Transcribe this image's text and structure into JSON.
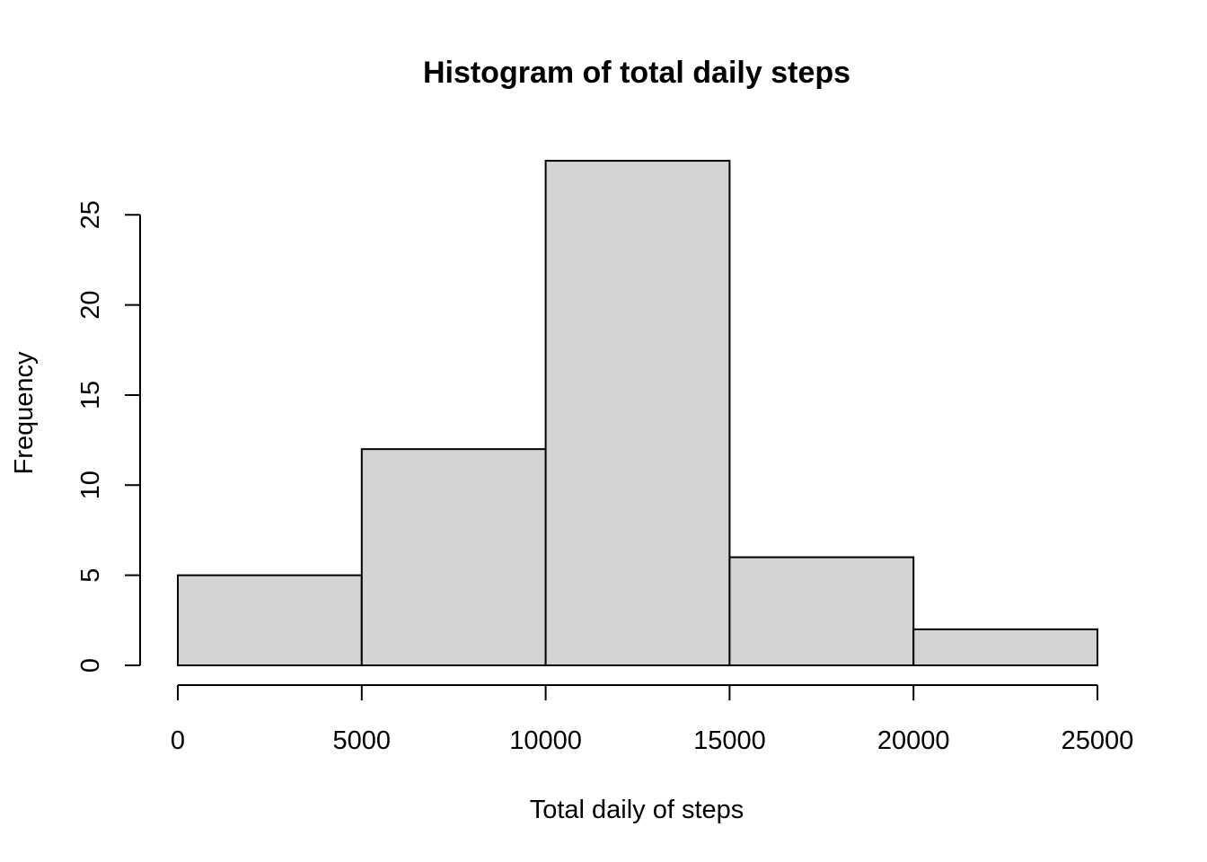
{
  "chart_data": {
    "type": "bar",
    "title": "Histogram of total daily steps",
    "xlabel": "Total daily of steps",
    "ylabel": "Frequency",
    "bins": [
      {
        "from": 0,
        "to": 5000,
        "count": 5
      },
      {
        "from": 5000,
        "to": 10000,
        "count": 12
      },
      {
        "from": 10000,
        "to": 15000,
        "count": 28
      },
      {
        "from": 15000,
        "to": 20000,
        "count": 6
      },
      {
        "from": 20000,
        "to": 25000,
        "count": 2
      }
    ],
    "x_ticks": [
      "0",
      "5000",
      "10000",
      "15000",
      "20000",
      "25000"
    ],
    "y_ticks": [
      "0",
      "5",
      "10",
      "15",
      "20",
      "25"
    ],
    "xlim": [
      0,
      25000
    ],
    "ylim": [
      0,
      28
    ],
    "grid": false,
    "bar_color": "#d3d3d3",
    "edge_color": "#000000"
  }
}
